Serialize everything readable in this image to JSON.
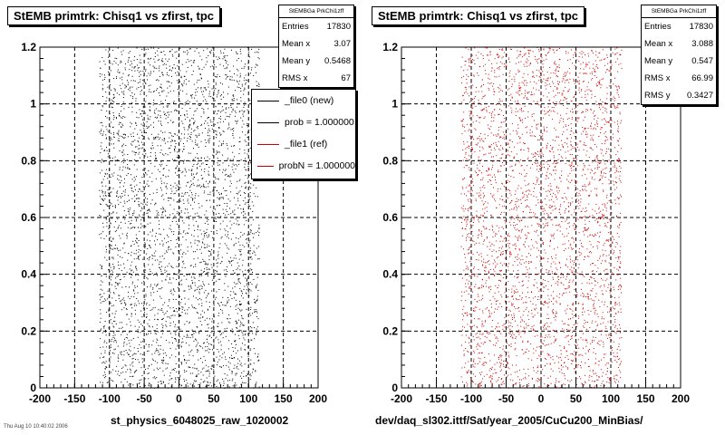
{
  "chart_data": [
    {
      "type": "scatter",
      "title": "StEMB primtrk: Chisq1 vs zfirst, tpc",
      "xlabel": "st_physics_6048025_raw_1020002",
      "ylabel": "",
      "xlim": [
        -200,
        200
      ],
      "ylim": [
        0,
        1.2
      ],
      "x_ticks": [
        "-200",
        "-150",
        "-100",
        "-50",
        "0",
        "50",
        "100",
        "150",
        "200"
      ],
      "y_ticks": [
        "0",
        "0.2",
        "0.4",
        "0.6",
        "0.8",
        "1",
        "1.2"
      ],
      "grid": true,
      "marker_color": "#000000",
      "x_distribution": {
        "min": -115,
        "max": 115,
        "mean": 3.07,
        "rms": 67
      },
      "y_distribution": {
        "min": 0,
        "max": 1.2,
        "mean": 0.5468
      },
      "stats": {
        "name": "StEMBGa PrkChi1zff",
        "rows": [
          {
            "label": "Entries",
            "value": "17830"
          },
          {
            "label": "Mean x",
            "value": "3.07"
          },
          {
            "label": "Mean y",
            "value": "0.5468"
          },
          {
            "label": "RMS x",
            "value": "67"
          }
        ]
      },
      "legend": [
        {
          "label": "_file0 (new)",
          "color": "#000000"
        },
        {
          "label": "prob = 1.000000",
          "color": "#000000"
        },
        {
          "label": "_file1 (ref)",
          "color": "#cc0000"
        },
        {
          "label": "probN = 1.000000",
          "color": "#cc0000"
        }
      ],
      "corner_note": "Thu Aug 10 10:40:02 2006"
    },
    {
      "type": "scatter",
      "title": "StEMB primtrk: Chisq1 vs zfirst, tpc",
      "xlabel": "dev/daq_sl302.ittf/Sat/year_2005/CuCu200_MinBias/",
      "ylabel": "",
      "xlim": [
        -200,
        200
      ],
      "ylim": [
        0,
        1.2
      ],
      "x_ticks": [
        "-200",
        "-150",
        "-100",
        "-50",
        "0",
        "50",
        "100",
        "150",
        "200"
      ],
      "y_ticks": [
        "0",
        "0.2",
        "0.4",
        "0.6",
        "0.8",
        "1",
        "1.2"
      ],
      "grid": true,
      "marker_color": "#cc0000",
      "x_distribution": {
        "min": -115,
        "max": 115,
        "mean": 3.088,
        "rms": 66.99
      },
      "y_distribution": {
        "min": 0,
        "max": 1.2,
        "mean": 0.547,
        "rms": 0.3427
      },
      "stats": {
        "name": "StEMBGa PrkChi1zff",
        "rows": [
          {
            "label": "Entries",
            "value": "17830"
          },
          {
            "label": "Mean x",
            "value": "3.088"
          },
          {
            "label": "Mean y",
            "value": "0.547"
          },
          {
            "label": "RMS x",
            "value": "66.99"
          },
          {
            "label": "RMS y",
            "value": "0.3427"
          }
        ]
      }
    }
  ]
}
